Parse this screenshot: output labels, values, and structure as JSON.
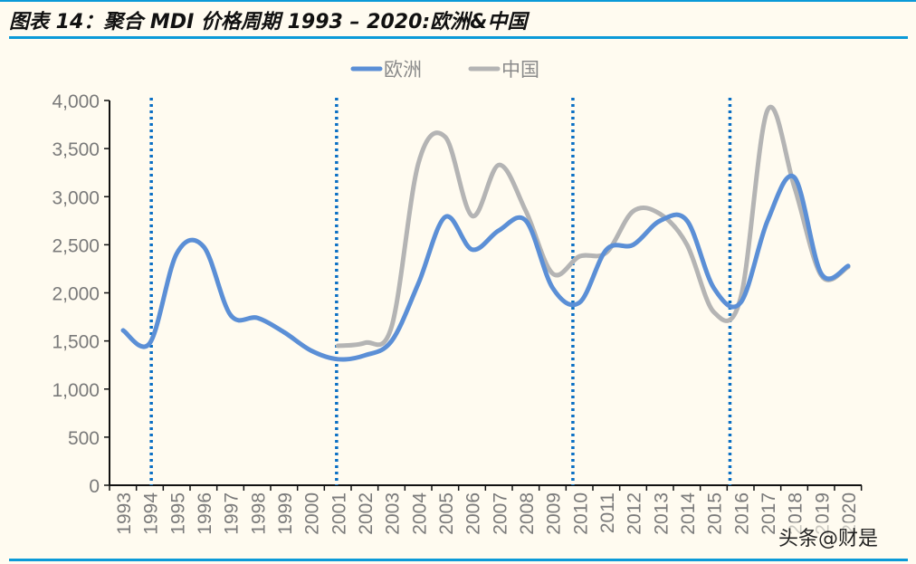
{
  "title": "图表 14：聚合 MDI 价格周期 1993 – 2020:欧洲&中国",
  "watermark": "头条@财是",
  "chart_data": {
    "type": "line",
    "title": "",
    "xlabel": "",
    "ylabel": "",
    "categories": [
      "1993",
      "1994",
      "1995",
      "1996",
      "1997",
      "1998",
      "1999",
      "2000",
      "2001",
      "2002",
      "2003",
      "2004",
      "2005",
      "2006",
      "2007",
      "2008",
      "2009",
      "2010",
      "2011",
      "2012",
      "2013",
      "2014",
      "2015",
      "2016",
      "2017",
      "2018",
      "2019",
      "2020"
    ],
    "ylim": [
      0,
      4000
    ],
    "yticks": [
      0,
      500,
      1000,
      1500,
      2000,
      2500,
      3000,
      3500,
      4000
    ],
    "ytick_labels": [
      "0",
      "500",
      "1,000",
      "1,500",
      "2,000",
      "2,500",
      "3,000",
      "3,500",
      "4,000"
    ],
    "grid": false,
    "legend_position": "top",
    "smooth": true,
    "series": [
      {
        "name": "欧洲",
        "color": "#5b8fd6",
        "values": [
          1610,
          1480,
          2410,
          2480,
          1770,
          1740,
          1590,
          1400,
          1310,
          1350,
          1500,
          2100,
          2790,
          2450,
          2650,
          2750,
          2050,
          1900,
          2450,
          2500,
          2750,
          2750,
          2050,
          1900,
          2750,
          3200,
          2200,
          2280
        ]
      },
      {
        "name": "中国",
        "color": "#b4b4b4",
        "values": [
          null,
          null,
          null,
          null,
          null,
          null,
          null,
          null,
          1450,
          1480,
          1650,
          3350,
          3620,
          2800,
          3330,
          2850,
          2200,
          2380,
          2420,
          2850,
          2820,
          2500,
          1800,
          1950,
          3900,
          3100,
          2180,
          2270
        ]
      }
    ],
    "cycle_markers": {
      "color": "#0a6fc4",
      "positions": [
        1994.05,
        2000.95,
        2009.75,
        2015.6
      ]
    }
  }
}
